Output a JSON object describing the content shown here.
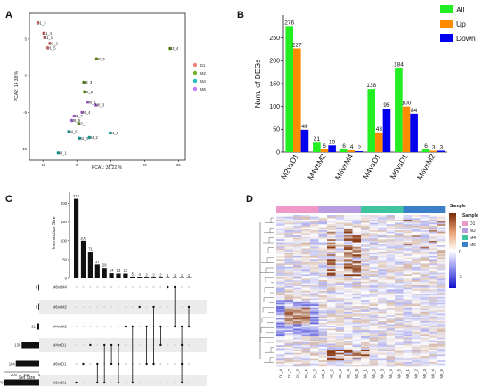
{
  "panels": [
    "A",
    "B",
    "C",
    "D"
  ],
  "pca": {
    "xlabel": "PCA1: 38.22 %",
    "ylabel": "PCA2: 14.38 %",
    "xticks": [
      -10,
      0,
      10,
      20,
      30
    ],
    "yticks": [
      -10,
      -5,
      0,
      5
    ],
    "xlim": [
      -14,
      32
    ],
    "ylim": [
      -11.5,
      8.5
    ],
    "groups": [
      {
        "name": "D1",
        "color": "#f0837c"
      },
      {
        "name": "M2",
        "color": "#7cae2e"
      },
      {
        "name": "M4",
        "color": "#1fbfb8"
      },
      {
        "name": "M6",
        "color": "#c77cff"
      }
    ],
    "points": [
      {
        "label": "D1_3",
        "group": "D1",
        "x": -11.5,
        "y": 7.2
      },
      {
        "label": "D1_4",
        "group": "D1",
        "x": -9.8,
        "y": 5.8
      },
      {
        "label": "D1_1",
        "group": "D1",
        "x": -9.5,
        "y": 5.2
      },
      {
        "label": "D1_2",
        "group": "D1",
        "x": -8.0,
        "y": 4.4
      },
      {
        "label": "D1_5",
        "group": "D1",
        "x": -8.6,
        "y": 3.8
      },
      {
        "label": "M2_4",
        "group": "M2",
        "x": 27.5,
        "y": 3.7
      },
      {
        "label": "M2_5",
        "group": "M2",
        "x": 5.8,
        "y": 2.3
      },
      {
        "label": "M2_3",
        "group": "M2",
        "x": 2.0,
        "y": -0.9
      },
      {
        "label": "M2_2",
        "group": "M2",
        "x": 2.2,
        "y": -2.2
      },
      {
        "label": "M2_1",
        "group": "M2",
        "x": 0.5,
        "y": -6.5
      },
      {
        "label": "M6_1",
        "group": "M6",
        "x": 3.2,
        "y": -3.6
      },
      {
        "label": "M6_3",
        "group": "M6",
        "x": 5.6,
        "y": -4.0
      },
      {
        "label": "M6_4",
        "group": "M6",
        "x": 1.5,
        "y": -5.0
      },
      {
        "label": "M6_2",
        "group": "M6",
        "x": -0.8,
        "y": -5.5
      },
      {
        "label": "M6_5",
        "group": "M6",
        "x": -1.5,
        "y": -6.1
      },
      {
        "label": "M4_5",
        "group": "M4",
        "x": -2.4,
        "y": -7.6
      },
      {
        "label": "M4_3",
        "group": "M4",
        "x": 9.8,
        "y": -7.8
      },
      {
        "label": "M4_2",
        "group": "M4",
        "x": 3.7,
        "y": -8.4
      },
      {
        "label": "M4_4",
        "group": "M4",
        "x": 0.8,
        "y": -8.5
      },
      {
        "label": "M4_1",
        "group": "M4",
        "x": -5.5,
        "y": -10.5
      }
    ]
  },
  "chart_data": {
    "type": "bar",
    "categories": [
      "M2vsD1",
      "M4vsM2",
      "M6vsM4",
      "M4vsD1",
      "M6vsD1",
      "M6vsM2"
    ],
    "series": [
      {
        "name": "All",
        "color": "#22ee22",
        "values": [
          276,
          21,
          6,
          138,
          184,
          6
        ]
      },
      {
        "name": "Up",
        "color": "#ff8c00",
        "values": [
          227,
          6,
          4,
          43,
          100,
          3
        ]
      },
      {
        "name": "Down",
        "color": "#0000ee",
        "values": [
          49,
          15,
          2,
          95,
          84,
          3
        ]
      }
    ],
    "ylabel": "Num. of DEGs",
    "ylim": [
      0,
      300
    ],
    "yticks": [
      0,
      50,
      100,
      150,
      200,
      250
    ],
    "legend": "top-right"
  },
  "upset": {
    "ylabel": "Intersection Size",
    "set_size_label": "Set Size",
    "set_size_ticks": [
      200,
      100,
      0
    ],
    "intersection_values": [
      212,
      100,
      71,
      37,
      28,
      14,
      13,
      13,
      5,
      4,
      2,
      2,
      2,
      1,
      1,
      1,
      1
    ],
    "sets": [
      {
        "name": "M6vsM4",
        "size": 6
      },
      {
        "name": "M6vsM2",
        "size": 6
      },
      {
        "name": "M4vsM2",
        "size": 21
      },
      {
        "name": "M4vsD1",
        "size": 138
      },
      {
        "name": "M6vsD1",
        "size": 184
      },
      {
        "name": "M2vsD1",
        "size": 276
      }
    ]
  },
  "heatmap": {
    "annotation_title": "Sample",
    "legend_title": "Sample",
    "legend_groups": [
      {
        "name": "D1",
        "color": "#ee99c8"
      },
      {
        "name": "M2",
        "color": "#b89ce0"
      },
      {
        "name": "M4",
        "color": "#3fc4a0"
      },
      {
        "name": "M6",
        "color": "#3a7fc8"
      }
    ],
    "scale_ticks": [
      "3",
      "0",
      "−3"
    ],
    "columns": [
      "D1_4",
      "D1_2",
      "D1_3",
      "D1_1",
      "D1_5",
      "M2_1",
      "M2_2",
      "M2_3",
      "M2_4",
      "M2_5",
      "M4_1",
      "M4_2",
      "M4_3",
      "M4_4",
      "M4_5",
      "M6_1",
      "M6_2",
      "M6_3",
      "M6_4",
      "M6_5"
    ]
  }
}
